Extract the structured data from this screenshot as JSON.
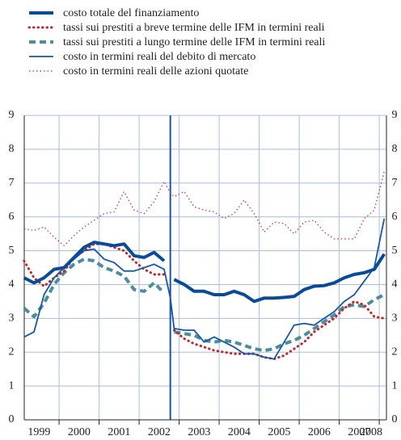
{
  "chart_data": {
    "type": "line",
    "x": [
      1999.125,
      1999.375,
      1999.625,
      1999.875,
      2000.125,
      2000.375,
      2000.625,
      2000.875,
      2001.125,
      2001.375,
      2001.625,
      2001.875,
      2002.125,
      2002.375,
      2002.625,
      2002.78,
      2002.875,
      2003.125,
      2003.375,
      2003.625,
      2003.875,
      2004.125,
      2004.375,
      2004.625,
      2004.875,
      2005.125,
      2005.375,
      2005.625,
      2005.875,
      2006.125,
      2006.375,
      2006.625,
      2006.875,
      2007.125,
      2007.375,
      2007.625,
      2007.875,
      2008.125
    ],
    "series": [
      {
        "name": "costo totale del finanziamento",
        "color": "#0b4a99",
        "style": "thick",
        "values": [
          4.2,
          4.05,
          4.2,
          4.45,
          4.5,
          4.8,
          5.1,
          5.25,
          5.2,
          5.15,
          5.2,
          4.85,
          4.8,
          4.95,
          4.7,
          null,
          4.15,
          4.0,
          3.8,
          3.8,
          3.7,
          3.7,
          3.8,
          3.7,
          3.5,
          3.6,
          3.6,
          3.62,
          3.65,
          3.85,
          3.95,
          3.97,
          4.05,
          4.2,
          4.3,
          4.35,
          4.45,
          4.9
        ]
      },
      {
        "name": "tassi sui prestiti a breve termine delle IFM in termini reali",
        "color": "#c0282d",
        "style": "dotted",
        "values": [
          4.7,
          4.2,
          3.95,
          4.2,
          4.4,
          4.8,
          5.0,
          5.2,
          5.2,
          5.1,
          5.0,
          4.7,
          4.45,
          4.3,
          4.3,
          null,
          2.65,
          2.4,
          2.25,
          2.15,
          2.05,
          2.0,
          1.95,
          1.95,
          1.95,
          1.85,
          1.8,
          1.9,
          2.1,
          2.3,
          2.6,
          2.8,
          3.0,
          3.3,
          3.5,
          3.4,
          3.05,
          3.0
        ]
      },
      {
        "name": "tassi sui prestiti a lungo termine delle IFM in termini reali",
        "color": "#4c8c9c",
        "style": "dashed",
        "values": [
          3.3,
          3.05,
          3.45,
          4.0,
          4.35,
          4.6,
          4.75,
          4.7,
          4.5,
          4.4,
          4.25,
          3.85,
          3.8,
          4.05,
          3.75,
          null,
          2.6,
          2.55,
          2.5,
          2.35,
          2.3,
          2.35,
          2.3,
          2.2,
          2.1,
          2.05,
          2.1,
          2.25,
          2.35,
          2.5,
          2.7,
          2.9,
          3.1,
          3.35,
          3.4,
          3.35,
          3.55,
          3.7
        ]
      },
      {
        "name": "costo in termini reali del debito di mercato",
        "color": "#1656a6",
        "style": "thin",
        "values": [
          2.45,
          2.6,
          3.7,
          4.2,
          4.5,
          4.75,
          5.0,
          5.05,
          4.75,
          4.65,
          4.4,
          4.4,
          4.5,
          4.6,
          4.45,
          3.6,
          2.7,
          2.65,
          2.65,
          2.3,
          2.45,
          2.3,
          2.15,
          1.95,
          1.95,
          1.85,
          1.8,
          2.3,
          2.8,
          2.85,
          2.8,
          3.0,
          3.2,
          3.5,
          3.7,
          4.1,
          4.5,
          5.95
        ]
      },
      {
        "name": "costo in termini reali delle azioni quotate",
        "color": "#c0282d",
        "style": "thin-dotted",
        "values": [
          5.65,
          5.6,
          5.7,
          5.4,
          5.15,
          5.45,
          5.7,
          5.9,
          6.1,
          6.15,
          6.75,
          6.2,
          6.1,
          6.45,
          7.05,
          6.7,
          6.6,
          6.75,
          6.3,
          6.2,
          6.15,
          5.95,
          6.1,
          6.5,
          6.1,
          5.55,
          5.85,
          5.8,
          5.5,
          5.85,
          5.9,
          5.55,
          5.35,
          5.35,
          5.35,
          5.95,
          6.2,
          7.35
        ]
      }
    ],
    "xlim": [
      1999.13,
      2008.18
    ],
    "xticks": [
      {
        "value": 1999.5,
        "label": "1999"
      },
      {
        "value": 2000.5,
        "label": "2000"
      },
      {
        "value": 2001.5,
        "label": "2001"
      },
      {
        "value": 2002.5,
        "label": "2002"
      },
      {
        "value": 2003.5,
        "label": "2003"
      },
      {
        "value": 2004.5,
        "label": "2004"
      },
      {
        "value": 2005.5,
        "label": "2005"
      },
      {
        "value": 2006.5,
        "label": "2006"
      },
      {
        "value": 2007.5,
        "label": "2007"
      },
      {
        "value": 2008.5,
        "label": "2008"
      }
    ],
    "xgrid": [
      2000,
      2001,
      2002,
      2003,
      2004,
      2005,
      2006,
      2007,
      2008
    ],
    "break_x": 2002.78,
    "ylim": [
      0,
      9
    ],
    "yticks": [
      0,
      1,
      2,
      3,
      4,
      5,
      6,
      7,
      8,
      9
    ],
    "y2lim": [
      0,
      9
    ],
    "y2ticks": [
      0,
      1,
      2,
      3,
      4,
      5,
      6,
      7,
      8,
      9
    ],
    "grid": true,
    "legend": "top"
  }
}
